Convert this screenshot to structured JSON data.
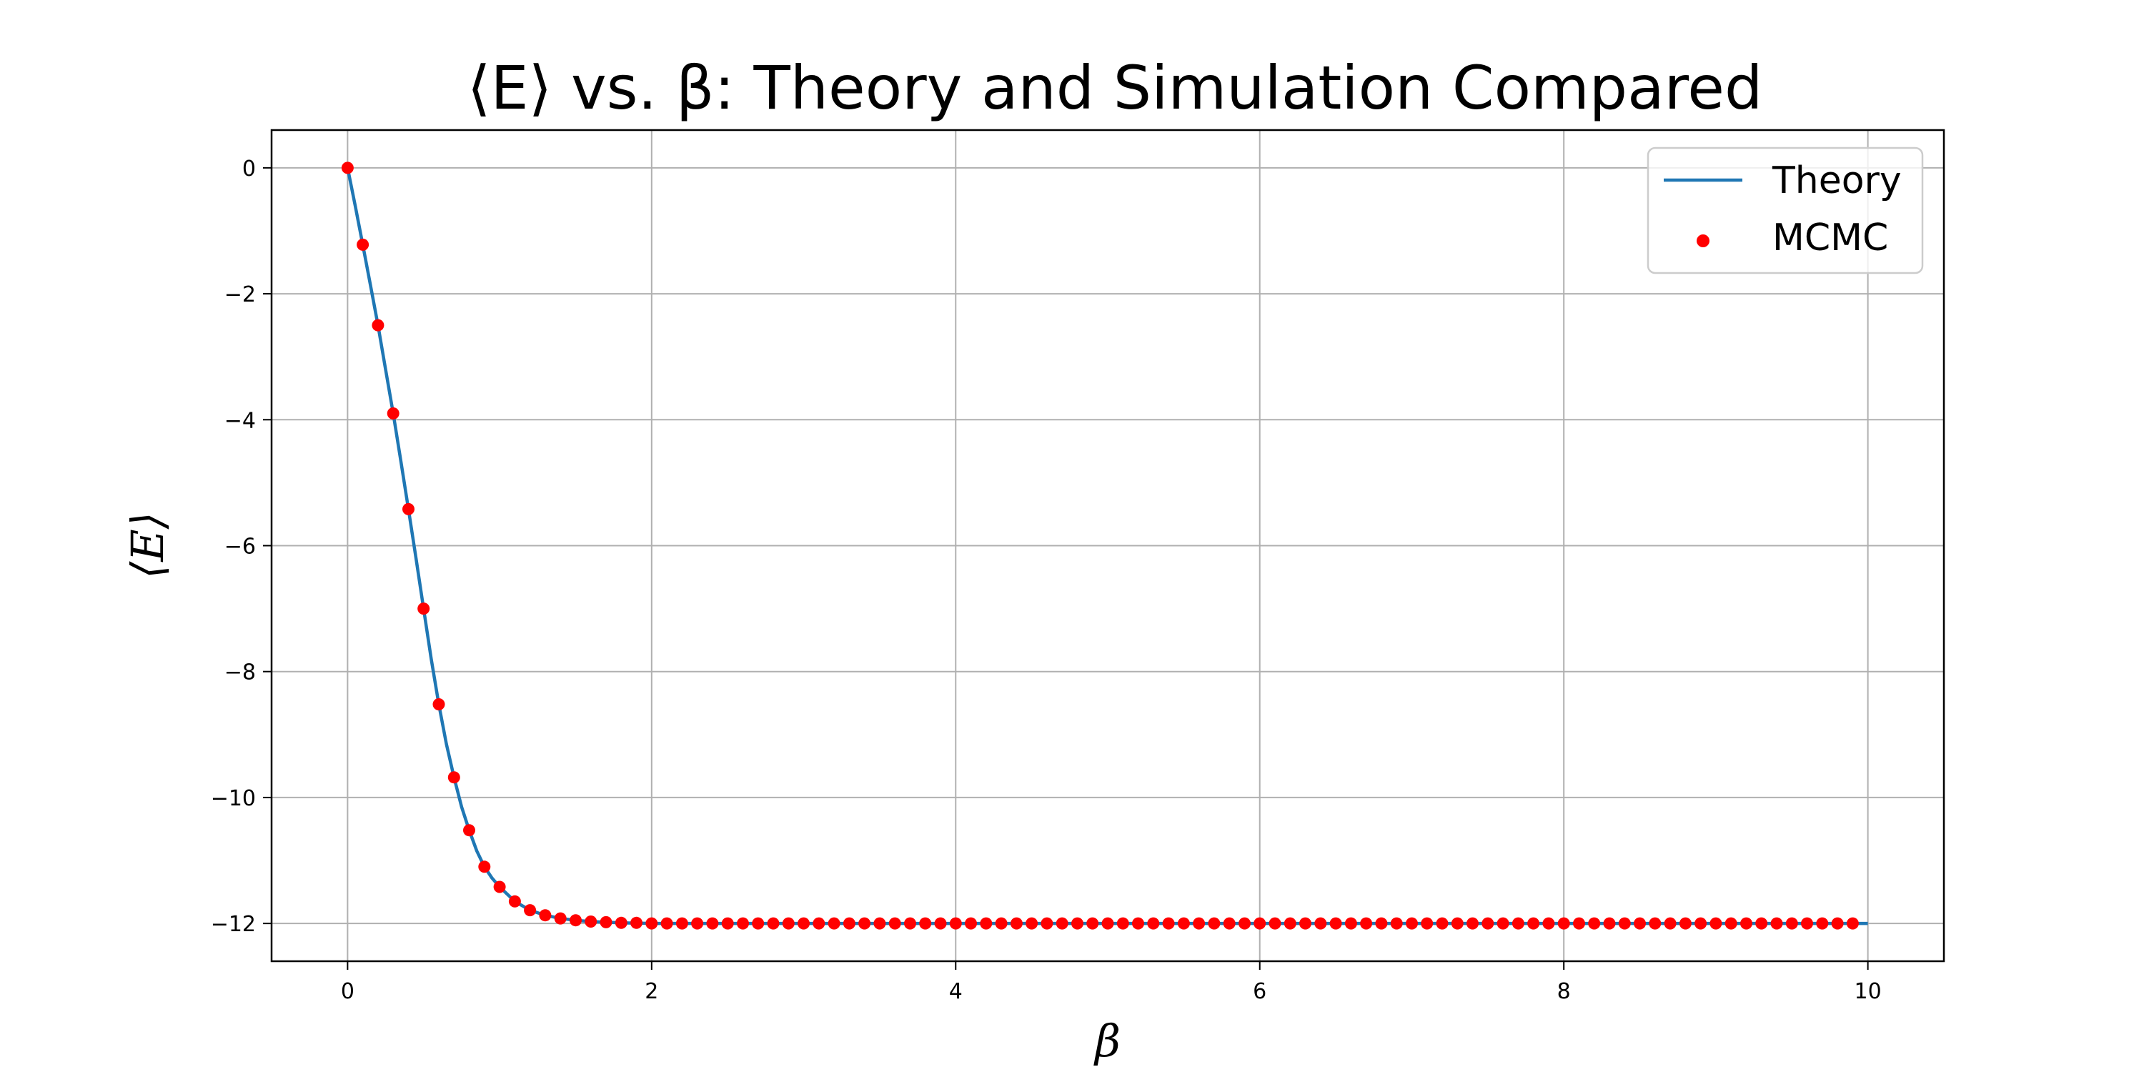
{
  "chart_data": {
    "type": "line",
    "title": "⟨E⟩ vs. β: Theory and Simulation Compared",
    "xlabel": "β",
    "ylabel": "⟨E⟩",
    "xlim": [
      -0.5,
      10.5
    ],
    "ylim": [
      -12.6,
      0.6
    ],
    "x_ticks": [
      0,
      2,
      4,
      6,
      8,
      10
    ],
    "y_ticks": [
      0,
      -2,
      -4,
      -6,
      -8,
      -10,
      -12
    ],
    "x_tick_labels": [
      "0",
      "2",
      "4",
      "6",
      "8",
      "10"
    ],
    "y_tick_labels": [
      "0",
      "−2",
      "−4",
      "−6",
      "−8",
      "−10",
      "−12"
    ],
    "grid": true,
    "legend_position": "top-right",
    "series": [
      {
        "name": "Theory",
        "type": "line",
        "color": "#1f77b4",
        "x": [
          0.0,
          0.05,
          0.1,
          0.15,
          0.2,
          0.25,
          0.3,
          0.35,
          0.4,
          0.45,
          0.5,
          0.55,
          0.6,
          0.65,
          0.7,
          0.75,
          0.8,
          0.85,
          0.9,
          0.95,
          1.0,
          1.1,
          1.2,
          1.3,
          1.4,
          1.5,
          1.6,
          1.8,
          2.0,
          3.0,
          4.0,
          5.0,
          6.0,
          7.0,
          8.0,
          9.0,
          10.0
        ],
        "y": [
          0.0,
          -0.6,
          -1.22,
          -1.86,
          -2.5,
          -3.2,
          -3.9,
          -4.65,
          -5.42,
          -6.2,
          -7.0,
          -7.8,
          -8.52,
          -9.15,
          -9.68,
          -10.15,
          -10.52,
          -10.85,
          -11.1,
          -11.28,
          -11.42,
          -11.65,
          -11.79,
          -11.87,
          -11.92,
          -11.95,
          -11.97,
          -11.99,
          -12.0,
          -12.0,
          -12.0,
          -12.0,
          -12.0,
          -12.0,
          -12.0,
          -12.0,
          -12.0
        ]
      },
      {
        "name": "MCMC",
        "type": "scatter",
        "color": "#ff0000",
        "x": [
          0.0,
          0.1,
          0.2,
          0.3,
          0.4,
          0.5,
          0.6,
          0.7,
          0.8,
          0.9,
          1.0,
          1.1,
          1.2,
          1.3,
          1.4,
          1.5,
          1.6,
          1.7,
          1.8,
          1.9,
          2.0,
          2.1,
          2.2,
          2.3,
          2.4,
          2.5,
          2.6,
          2.7,
          2.8,
          2.9,
          3.0,
          3.1,
          3.2,
          3.3,
          3.4,
          3.5,
          3.6,
          3.7,
          3.8,
          3.9,
          4.0,
          4.1,
          4.2,
          4.3,
          4.4,
          4.5,
          4.6,
          4.7,
          4.8,
          4.9,
          5.0,
          5.1,
          5.2,
          5.3,
          5.4,
          5.5,
          5.6,
          5.7,
          5.8,
          5.9,
          6.0,
          6.1,
          6.2,
          6.3,
          6.4,
          6.5,
          6.6,
          6.7,
          6.8,
          6.9,
          7.0,
          7.1,
          7.2,
          7.3,
          7.4,
          7.5,
          7.6,
          7.7,
          7.8,
          7.9,
          8.0,
          8.1,
          8.2,
          8.3,
          8.4,
          8.5,
          8.6,
          8.7,
          8.8,
          8.9,
          9.0,
          9.1,
          9.2,
          9.3,
          9.4,
          9.5,
          9.6,
          9.7,
          9.8,
          9.9
        ],
        "y": [
          0.0,
          -1.22,
          -2.5,
          -3.9,
          -5.42,
          -7.0,
          -8.52,
          -9.68,
          -10.52,
          -11.1,
          -11.42,
          -11.65,
          -11.79,
          -11.87,
          -11.92,
          -11.95,
          -11.97,
          -11.98,
          -11.99,
          -11.99,
          -12.0,
          -12.0,
          -12.0,
          -12.0,
          -12.0,
          -12.0,
          -12.0,
          -12.0,
          -12.0,
          -12.0,
          -12.0,
          -12.0,
          -12.0,
          -12.0,
          -12.0,
          -12.0,
          -12.0,
          -12.0,
          -12.0,
          -12.0,
          -12.0,
          -12.0,
          -12.0,
          -12.0,
          -12.0,
          -12.0,
          -12.0,
          -12.0,
          -12.0,
          -12.0,
          -12.0,
          -12.0,
          -12.0,
          -12.0,
          -12.0,
          -12.0,
          -12.0,
          -12.0,
          -12.0,
          -12.0,
          -12.0,
          -12.0,
          -12.0,
          -12.0,
          -12.0,
          -12.0,
          -12.0,
          -12.0,
          -12.0,
          -12.0,
          -12.0,
          -12.0,
          -12.0,
          -12.0,
          -12.0,
          -12.0,
          -12.0,
          -12.0,
          -12.0,
          -12.0,
          -12.0,
          -12.0,
          -12.0,
          -12.0,
          -12.0,
          -12.0,
          -12.0,
          -12.0,
          -12.0,
          -12.0,
          -12.0,
          -12.0,
          -12.0,
          -12.0,
          -12.0,
          -12.0,
          -12.0,
          -12.0,
          -12.0,
          -12.0
        ]
      }
    ]
  }
}
